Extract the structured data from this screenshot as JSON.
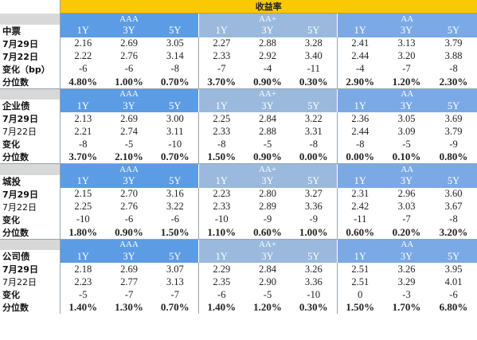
{
  "title": "收益率",
  "groups": [
    {
      "name": "AAA",
      "tenors": [
        "1Y",
        "3Y",
        "5Y"
      ]
    },
    {
      "name": "AA+",
      "tenors": [
        "1Y",
        "3Y",
        "5Y"
      ]
    },
    {
      "name": "AA",
      "tenors": [
        "1Y",
        "3Y",
        "5Y"
      ]
    }
  ],
  "sections": [
    {
      "name": "中票",
      "rows": [
        {
          "label": "7月29日",
          "values": [
            "2.16",
            "2.69",
            "3.05",
            "2.27",
            "2.88",
            "3.28",
            "2.41",
            "3.13",
            "3.79"
          ]
        },
        {
          "label": "7月22日",
          "values": [
            "2.22",
            "2.76",
            "3.14",
            "2.33",
            "2.92",
            "3.40",
            "2.44",
            "3.20",
            "3.88"
          ]
        },
        {
          "label": "变化（bp）",
          "values": [
            "-6",
            "-6",
            "-8",
            "-7",
            "-4",
            "-11",
            "-4",
            "-7",
            "-8"
          ]
        },
        {
          "label": "分位数",
          "values": [
            "4.80%",
            "1.00%",
            "0.70%",
            "3.70%",
            "0.90%",
            "0.30%",
            "2.90%",
            "1.20%",
            "2.30%"
          ]
        }
      ]
    },
    {
      "name": "企业债",
      "rows": [
        {
          "label": "7月29日",
          "values": [
            "2.13",
            "2.69",
            "3.00",
            "2.25",
            "2.84",
            "3.22",
            "2.36",
            "3.05",
            "3.69"
          ]
        },
        {
          "label": "7月22日",
          "values": [
            "2.21",
            "2.74",
            "3.11",
            "2.33",
            "2.88",
            "3.31",
            "2.44",
            "3.09",
            "3.79"
          ]
        },
        {
          "label": "变化",
          "values": [
            "-8",
            "-5",
            "-10",
            "-8",
            "-5",
            "-8",
            "-8",
            "-5",
            "-9"
          ]
        },
        {
          "label": "分位数",
          "values": [
            "3.70%",
            "2.10%",
            "0.70%",
            "1.50%",
            "0.90%",
            "0.00%",
            "0.00%",
            "0.10%",
            "0.80%"
          ]
        }
      ]
    },
    {
      "name": "城投",
      "rows": [
        {
          "label": "7月29日",
          "values": [
            "2.15",
            "2.70",
            "3.16",
            "2.23",
            "2.80",
            "3.27",
            "2.31",
            "2.96",
            "3.60"
          ]
        },
        {
          "label": "7月22日",
          "values": [
            "2.25",
            "2.76",
            "3.22",
            "2.33",
            "2.89",
            "3.36",
            "2.42",
            "3.03",
            "3.67"
          ]
        },
        {
          "label": "变化",
          "values": [
            "-10",
            "-6",
            "-6",
            "-10",
            "-9",
            "-9",
            "-11",
            "-7",
            "-8"
          ]
        },
        {
          "label": "分位数",
          "values": [
            "1.80%",
            "0.90%",
            "1.50%",
            "1.10%",
            "0.60%",
            "1.00%",
            "0.60%",
            "0.20%",
            "3.20%"
          ]
        }
      ]
    },
    {
      "name": "公司债",
      "rows": [
        {
          "label": "7月29日",
          "values": [
            "2.18",
            "2.69",
            "3.07",
            "2.29",
            "2.84",
            "3.26",
            "2.51",
            "3.26",
            "3.95"
          ]
        },
        {
          "label": "7月22日",
          "values": [
            "2.23",
            "2.77",
            "3.13",
            "2.35",
            "2.90",
            "3.36",
            "2.51",
            "3.29",
            "4.01"
          ]
        },
        {
          "label": "变化",
          "values": [
            "-5",
            "-7",
            "-7",
            "-6",
            "-5",
            "-10",
            "0",
            "-3",
            "-6"
          ]
        },
        {
          "label": "分位数",
          "values": [
            "1.40%",
            "1.30%",
            "0.70%",
            "1.40%",
            "1.20%",
            "0.30%",
            "1.50%",
            "1.70%",
            "6.80%"
          ]
        }
      ]
    }
  ],
  "colors": {
    "title_bg": "#fbc804",
    "group_aaa": "#5c9ce4",
    "group_aa_plus": "#9ab9dc",
    "group_aa": "#7aa9e6"
  }
}
